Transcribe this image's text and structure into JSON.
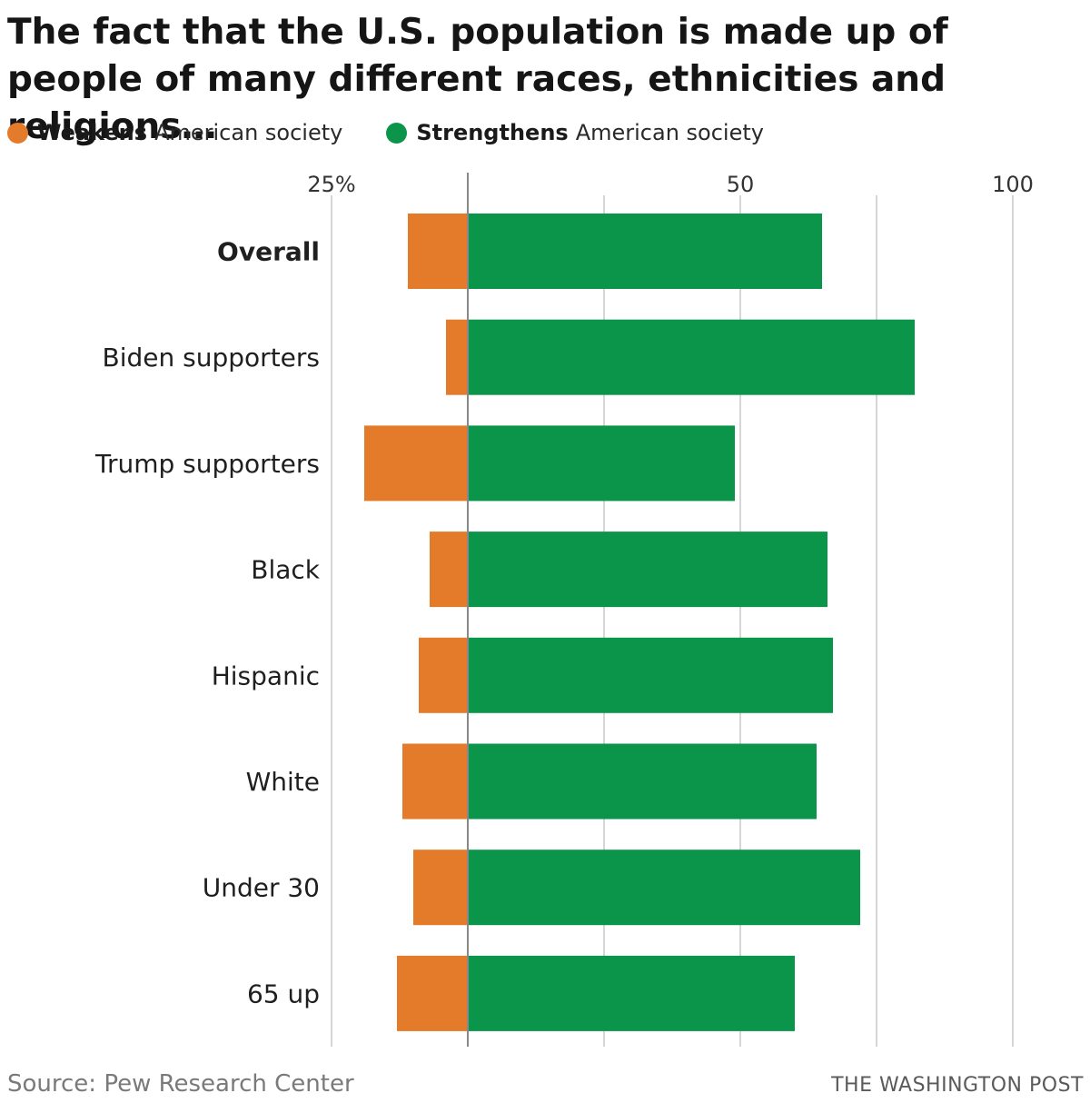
{
  "title": "The fact that the U.S. population is made up of people of many different races, ethnicities and religions…",
  "legend": {
    "weakens": {
      "bold": "Weakens",
      "rest": "American society"
    },
    "strengthens": {
      "bold": "Strengthens",
      "rest": "American society"
    }
  },
  "colors": {
    "weakens": "#e47b2a",
    "strengthens": "#0b954a",
    "gridline": "#c8c8c8",
    "baseline": "#888888"
  },
  "chart_data": {
    "type": "bar",
    "orientation": "horizontal-diverging",
    "scale_note": "Diverging bars from a common baseline; left extends for Weakens, right for Strengthens",
    "ticks": [
      {
        "label": "25%",
        "value": -25
      },
      {
        "label": "50",
        "value": 50
      },
      {
        "label": "100",
        "value": 100
      }
    ],
    "gridlines": [
      -25,
      25,
      50,
      75,
      100
    ],
    "xlim": [
      -25,
      100
    ],
    "categories": [
      "Overall",
      "Biden supporters",
      "Trump supporters",
      "Black",
      "Hispanic",
      "White",
      "Under 30",
      "65 up"
    ],
    "bold_categories": [
      "Overall"
    ],
    "series": [
      {
        "name": "Weakens",
        "values": [
          11,
          4,
          19,
          7,
          9,
          12,
          10,
          13
        ]
      },
      {
        "name": "Strengthens",
        "values": [
          65,
          82,
          49,
          66,
          67,
          64,
          72,
          60
        ]
      }
    ]
  },
  "footer": {
    "source": "Source: Pew Research Center",
    "credit": "THE WASHINGTON POST"
  }
}
